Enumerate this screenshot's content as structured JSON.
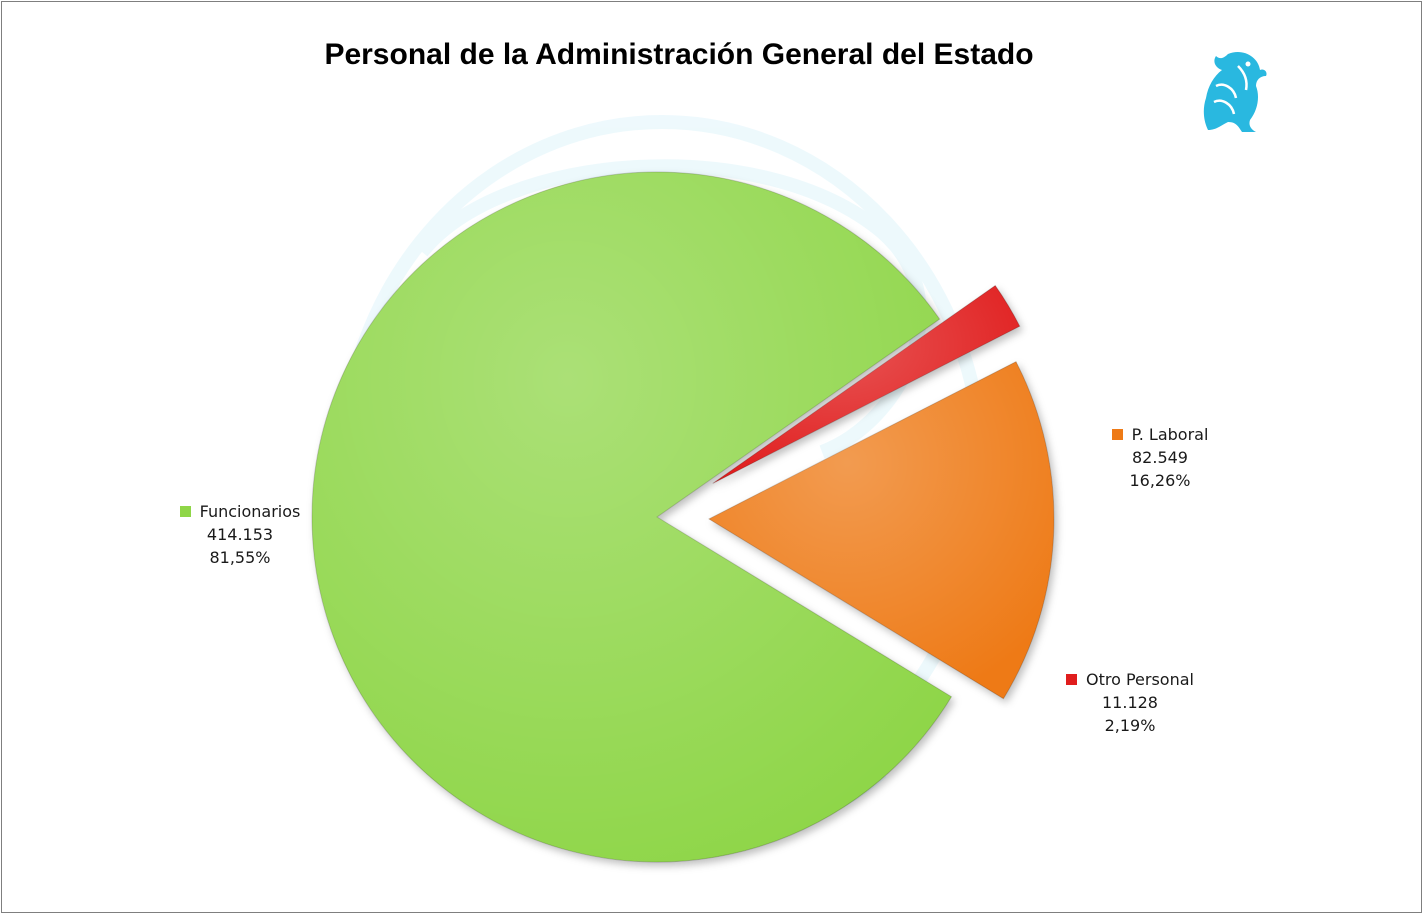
{
  "chart_data": {
    "type": "pie",
    "title": "Personal de la Administración General del Estado",
    "slices": [
      {
        "label": "Funcionarios",
        "value": 414153,
        "value_text": "414.153",
        "percent": 81.55,
        "percent_text": "81,55%",
        "color": "#8fd648",
        "exploded": false
      },
      {
        "label": "P. Laboral",
        "value": 82549,
        "value_text": "82.549",
        "percent": 16.26,
        "percent_text": "16,26%",
        "color": "#ee7a16",
        "exploded": true
      },
      {
        "label": "Otro Personal",
        "value": 11128,
        "value_text": "11.128",
        "percent": 2.19,
        "percent_text": "2,19%",
        "color": "#e01d1d",
        "exploded": true
      }
    ],
    "legend": "none",
    "data_labels": "outside"
  },
  "logo": {
    "icon": "griffin-emblem-icon",
    "color": "#29b8e0"
  }
}
